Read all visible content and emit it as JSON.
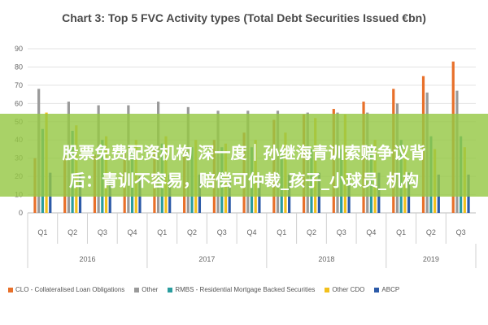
{
  "banner": {
    "line1": "股票免费配资机构 深一度｜孙继海青训索赔争议背",
    "line2": "后：青训不容易，赔偿可仲裁_孩子_小球员_机构"
  },
  "colors": {
    "CLO": "#e8702a",
    "Other": "#9a9a9a",
    "RMBS": "#2a9d9f",
    "OtherCDO": "#f2c01c",
    "ABCP": "#2c5aa8",
    "grid": "#e3e3e3",
    "axis_text": "#666666"
  },
  "chart_data": {
    "type": "bar",
    "title": "Chart 3: Top 5 FVC Activity types (Total Debt Securities Issued €bn)",
    "categories": [
      "Q1",
      "Q2",
      "Q3",
      "Q4",
      "Q1",
      "Q2",
      "Q3",
      "Q4",
      "Q1",
      "Q2",
      "Q3",
      "Q4",
      "Q1",
      "Q2",
      "Q3"
    ],
    "groups": [
      {
        "label": "2016",
        "count": 4
      },
      {
        "label": "2017",
        "count": 4
      },
      {
        "label": "2018",
        "count": 4
      },
      {
        "label": "2019",
        "count": 3
      }
    ],
    "ylim": [
      0,
      90
    ],
    "yticks": [
      0,
      10,
      20,
      30,
      40,
      50,
      60,
      70,
      80,
      90
    ],
    "series": [
      {
        "name": "CLO - Collateralised Loan Obligations",
        "key": "CLO",
        "values": [
          30,
          31,
          32,
          33,
          35,
          36,
          40,
          44,
          51,
          54,
          57,
          61,
          68,
          75,
          83
        ]
      },
      {
        "name": "Other",
        "key": "Other",
        "values": [
          68,
          61,
          59,
          59,
          61,
          58,
          56,
          56,
          56,
          55,
          55,
          55,
          60,
          66,
          67
        ]
      },
      {
        "name": "RMBS - Residential Mortgage Backed Securities",
        "key": "RMBS",
        "values": [
          46,
          45,
          40,
          37,
          38,
          36,
          36,
          36,
          35,
          35,
          35,
          36,
          40,
          42,
          42
        ]
      },
      {
        "name": "Other CDO",
        "key": "OtherCDO",
        "values": [
          55,
          48,
          42,
          40,
          42,
          40,
          38,
          40,
          44,
          52,
          54,
          40,
          35,
          35,
          36
        ]
      },
      {
        "name": "ABCP",
        "key": "ABCP",
        "values": [
          22,
          21,
          20,
          20,
          21,
          21,
          20,
          21,
          21,
          22,
          21,
          22,
          22,
          21,
          21
        ]
      }
    ]
  }
}
